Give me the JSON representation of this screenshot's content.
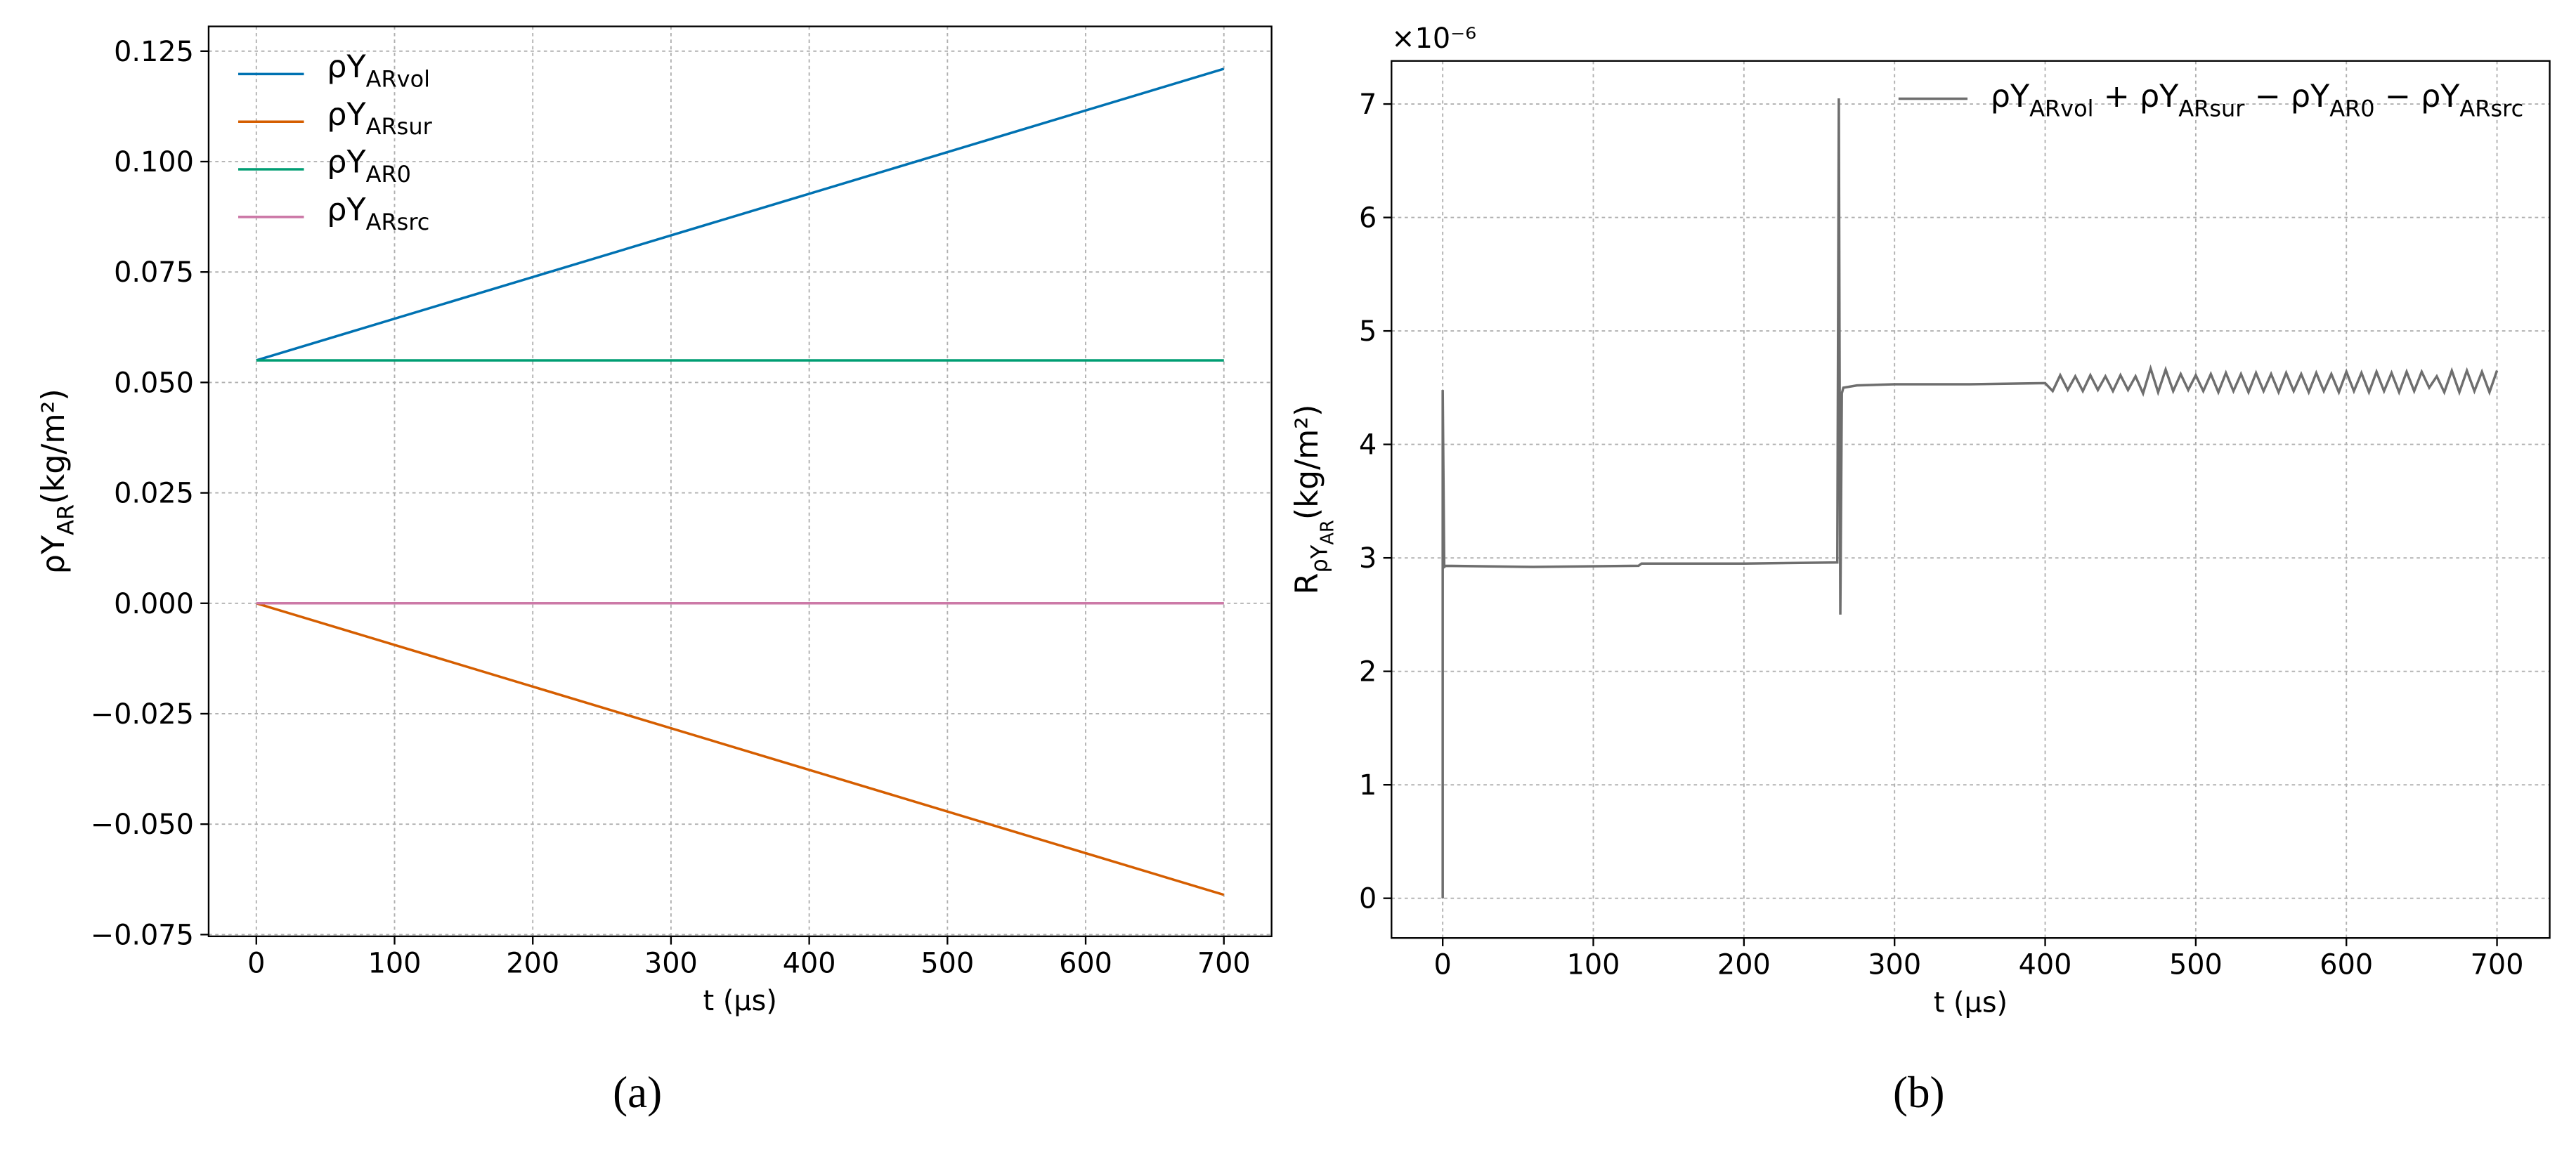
{
  "chart_data": [
    {
      "type": "line",
      "x": [
        0,
        700
      ],
      "series": [
        {
          "name": [
            "ρY",
            "ARvol"
          ],
          "color": "#0072b2",
          "values": [
            0.055,
            0.121
          ]
        },
        {
          "name": [
            "ρY",
            "ARsur"
          ],
          "color": "#d55e00",
          "values": [
            0,
            -0.066
          ]
        },
        {
          "name": [
            "ρY",
            "AR0"
          ],
          "color": "#009e73",
          "values": [
            0.055,
            0.055
          ]
        },
        {
          "name": [
            "ρY",
            "ARsrc"
          ],
          "color": "#cc79a7",
          "values": [
            0,
            0
          ]
        }
      ],
      "xlabel": "t (μs)",
      "ylabel": [
        "ρY",
        "AR",
        "(kg/m²)"
      ],
      "xlim": [
        -34.5,
        734.5
      ],
      "xticks": [
        0,
        100,
        200,
        300,
        400,
        500,
        600,
        700
      ],
      "ylim": [
        -0.0754,
        0.1306
      ],
      "yticks": [
        {
          "value": -0.075,
          "label": "−0.075"
        },
        {
          "value": -0.05,
          "label": "−0.050"
        },
        {
          "value": -0.025,
          "label": "−0.025"
        },
        {
          "value": 0,
          "label": "0.000"
        },
        {
          "value": 0.025,
          "label": "0.025"
        },
        {
          "value": 0.05,
          "label": "0.050"
        },
        {
          "value": 0.075,
          "label": "0.075"
        },
        {
          "value": 0.1,
          "label": "0.100"
        },
        {
          "value": 0.125,
          "label": "0.125"
        }
      ],
      "grid": true,
      "legend": "upper left",
      "caption": "(a)"
    },
    {
      "type": "line",
      "x": [
        0,
        0,
        1,
        2,
        60,
        130,
        132,
        200,
        262,
        263,
        264,
        265,
        266,
        275,
        300,
        350,
        400,
        405,
        410,
        415,
        420,
        425,
        430,
        435,
        440,
        445,
        450,
        455,
        460,
        465,
        470,
        475,
        480,
        485,
        490,
        495,
        500,
        505,
        510,
        515,
        520,
        525,
        530,
        535,
        540,
        545,
        550,
        555,
        560,
        565,
        570,
        575,
        580,
        585,
        590,
        595,
        600,
        605,
        610,
        615,
        620,
        625,
        630,
        635,
        640,
        645,
        650,
        655,
        660,
        665,
        670,
        675,
        680,
        685,
        690,
        695,
        700
      ],
      "series": [
        {
          "name": [
            "ρY",
            "ARvol",
            " + ρY",
            "ARsur",
            " − ρY",
            "AR0",
            " − ρY",
            "ARsrc"
          ],
          "color": "#6e6e6e",
          "values": [
            0,
            4.48,
            2.92,
            2.93,
            2.92,
            2.93,
            2.95,
            2.95,
            2.96,
            7.05,
            2.5,
            4.45,
            4.5,
            4.52,
            4.53,
            4.53,
            4.54,
            4.47,
            4.61,
            4.48,
            4.6,
            4.47,
            4.61,
            4.48,
            4.6,
            4.47,
            4.61,
            4.48,
            4.6,
            4.45,
            4.67,
            4.46,
            4.66,
            4.47,
            4.62,
            4.48,
            4.61,
            4.47,
            4.62,
            4.46,
            4.63,
            4.47,
            4.62,
            4.46,
            4.63,
            4.47,
            4.62,
            4.46,
            4.63,
            4.47,
            4.62,
            4.46,
            4.63,
            4.47,
            4.62,
            4.46,
            4.64,
            4.47,
            4.63,
            4.46,
            4.64,
            4.47,
            4.63,
            4.46,
            4.64,
            4.47,
            4.64,
            4.5,
            4.6,
            4.46,
            4.65,
            4.46,
            4.65,
            4.47,
            4.64,
            4.46,
            4.65
          ]
        }
      ],
      "xlabel": "t (μs)",
      "ylabel": [
        "R",
        "ρY",
        "AR",
        "(kg/m²)"
      ],
      "y_offset_label": "×10⁻⁶",
      "xlim": [
        -34,
        735
      ],
      "xticks": [
        0,
        100,
        200,
        300,
        400,
        500,
        600,
        700
      ],
      "ylim": [
        -0.35,
        7.38
      ],
      "yticks": [
        0,
        1,
        2,
        3,
        4,
        5,
        6,
        7
      ],
      "grid": true,
      "legend": "upper right",
      "caption": "(b)"
    }
  ]
}
